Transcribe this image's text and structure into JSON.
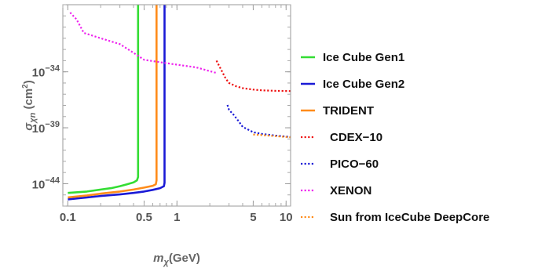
{
  "chart_data": {
    "type": "line",
    "title": "",
    "x_scale": "log",
    "y_scale": "log",
    "xlim": [
      0.09,
      11
    ],
    "ylim": [
      1e-46,
      1e-28
    ],
    "grid": false,
    "legend_position": "right",
    "x_ticks": [
      {
        "value": 0.1,
        "label": "0.1"
      },
      {
        "value": 0.5,
        "label": "0.5"
      },
      {
        "value": 1,
        "label": "1"
      },
      {
        "value": 5,
        "label": "5"
      },
      {
        "value": 10,
        "label": "10"
      }
    ],
    "y_ticks": [
      {
        "value": 1e-34,
        "base": "10",
        "exp": "−34"
      },
      {
        "value": 1e-39,
        "base": "10",
        "exp": "−39"
      },
      {
        "value": 1e-44,
        "base": "10",
        "exp": "−44"
      }
    ],
    "xlabel": {
      "sym": "m",
      "sub": "χ",
      "rest": "(GeV)"
    },
    "ylabel": {
      "sym": "σ",
      "sub": "χn",
      "rest": " (cm",
      "sup": "2",
      "end": ")"
    },
    "series": [
      {
        "name": "Ice Cube Gen1",
        "color": "#33dd33",
        "dash": "solid",
        "x": [
          0.1,
          0.15,
          0.2,
          0.25,
          0.3,
          0.35,
          0.4,
          0.43,
          0.44,
          0.44,
          0.44
        ],
        "y": [
          1.5e-45,
          2e-45,
          3e-45,
          4e-45,
          6e-45,
          9e-45,
          1.3e-44,
          2e-44,
          4e-44,
          1e-40,
          1e-28
        ]
      },
      {
        "name": "Ice Cube Gen2",
        "color": "#1a1ad6",
        "dash": "solid",
        "x": [
          0.1,
          0.15,
          0.2,
          0.3,
          0.4,
          0.5,
          0.6,
          0.7,
          0.76,
          0.77,
          0.77,
          0.77
        ],
        "y": [
          4e-46,
          6e-46,
          8e-46,
          1.1e-45,
          1.5e-45,
          2e-45,
          2.8e-45,
          4e-45,
          6e-45,
          1.2e-44,
          1e-40,
          1e-28
        ]
      },
      {
        "name": "TRIDENT",
        "color": "#ff8c1a",
        "dash": "solid",
        "x": [
          0.1,
          0.15,
          0.2,
          0.3,
          0.4,
          0.5,
          0.6,
          0.64,
          0.65,
          0.65,
          0.65
        ],
        "y": [
          6e-46,
          9e-46,
          1.3e-45,
          2e-45,
          3e-45,
          4.5e-45,
          6.5e-45,
          9e-45,
          2e-44,
          1e-40,
          1e-28
        ]
      },
      {
        "name": "CDEX−10",
        "color": "#ee1111",
        "dash": "dotted",
        "x": [
          2.3,
          2.6,
          2.8,
          3.0,
          3.5,
          4.0,
          5.0,
          6.0,
          8.0,
          11
        ],
        "y": [
          1e-33,
          1e-34,
          2.5e-35,
          1e-35,
          5e-36,
          3.5e-36,
          2.6e-36,
          2.2e-36,
          2e-36,
          1.9e-36
        ]
      },
      {
        "name": "PICO−60",
        "color": "#1a1ad6",
        "dash": "dotted",
        "x": [
          2.9,
          3.0,
          3.3,
          3.7,
          4.0,
          5.0,
          6.0,
          8.0,
          11
        ],
        "y": [
          1.1e-37,
          4e-38,
          1.5e-38,
          3.5e-39,
          1.2e-39,
          4e-40,
          2.8e-40,
          2e-40,
          1.5e-40
        ]
      },
      {
        "name": "XENON",
        "color": "#ee22ee",
        "dash": "dotted",
        "x": [
          0.105,
          0.12,
          0.14,
          0.2,
          0.3,
          0.4,
          0.5,
          0.8,
          1.5,
          2.3
        ],
        "y": [
          2e-29,
          5e-30,
          3e-31,
          1e-31,
          3e-32,
          5e-33,
          1.2e-33,
          6e-34,
          2.5e-34,
          8e-35
        ]
      },
      {
        "name": "Sun from IceCube DeepCore",
        "color": "#ff8c1a",
        "dash": "dotted",
        "x": [
          5,
          6,
          8,
          11
        ],
        "y": [
          2.5e-40,
          2.2e-40,
          1.8e-40,
          1.4e-40
        ]
      }
    ]
  }
}
